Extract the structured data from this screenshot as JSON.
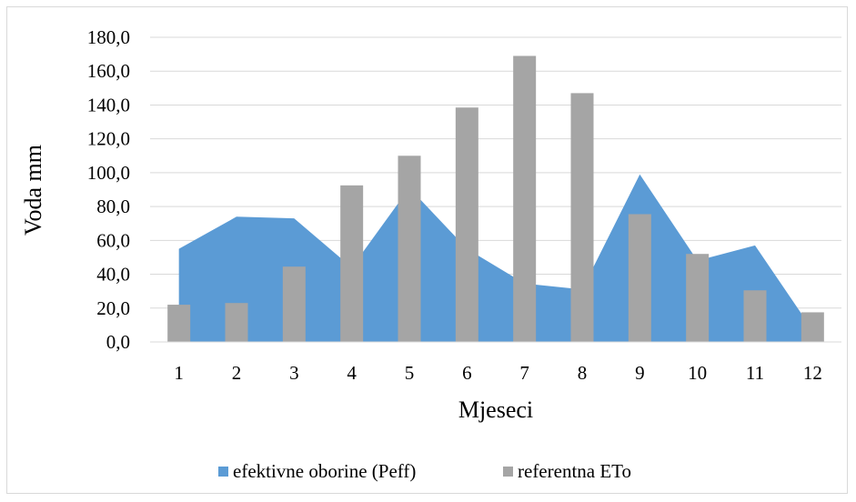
{
  "chart_data": {
    "type": "bar",
    "categories": [
      "1",
      "2",
      "3",
      "4",
      "5",
      "6",
      "7",
      "8",
      "9",
      "10",
      "11",
      "12"
    ],
    "series": [
      {
        "name": "efektivne oborine (Peff)",
        "kind": "area",
        "color": "#5b9bd5",
        "values": [
          55.0,
          74.0,
          73.0,
          44.0,
          91.0,
          55.0,
          34.5,
          31.0,
          99.0,
          48.0,
          57.0,
          7.0
        ]
      },
      {
        "name": "referentna ETo",
        "kind": "bar",
        "color": "#a5a5a5",
        "values": [
          22.0,
          23.0,
          44.5,
          92.5,
          110.0,
          138.5,
          169.0,
          147.0,
          75.5,
          52.0,
          30.5,
          17.5
        ]
      }
    ],
    "xlabel": "Mjeseci",
    "ylabel": "Voda mm",
    "ylim": [
      0,
      180
    ],
    "yticks": [
      "0,0",
      "20,0",
      "40,0",
      "60,0",
      "80,0",
      "100,0",
      "120,0",
      "140,0",
      "160,0",
      "180,0"
    ],
    "grid": true,
    "legend_position": "bottom"
  }
}
